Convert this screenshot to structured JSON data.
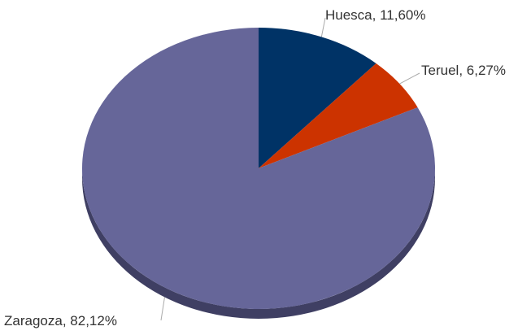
{
  "chart_data": {
    "type": "pie",
    "categories": [
      "Huesca",
      "Teruel",
      "Zaragoza"
    ],
    "values": [
      11.6,
      6.27,
      82.12
    ],
    "value_labels": [
      "11,60%",
      "6,27%",
      "82,12%"
    ],
    "colors": [
      "#003366",
      "#cc3300",
      "#666699"
    ]
  }
}
